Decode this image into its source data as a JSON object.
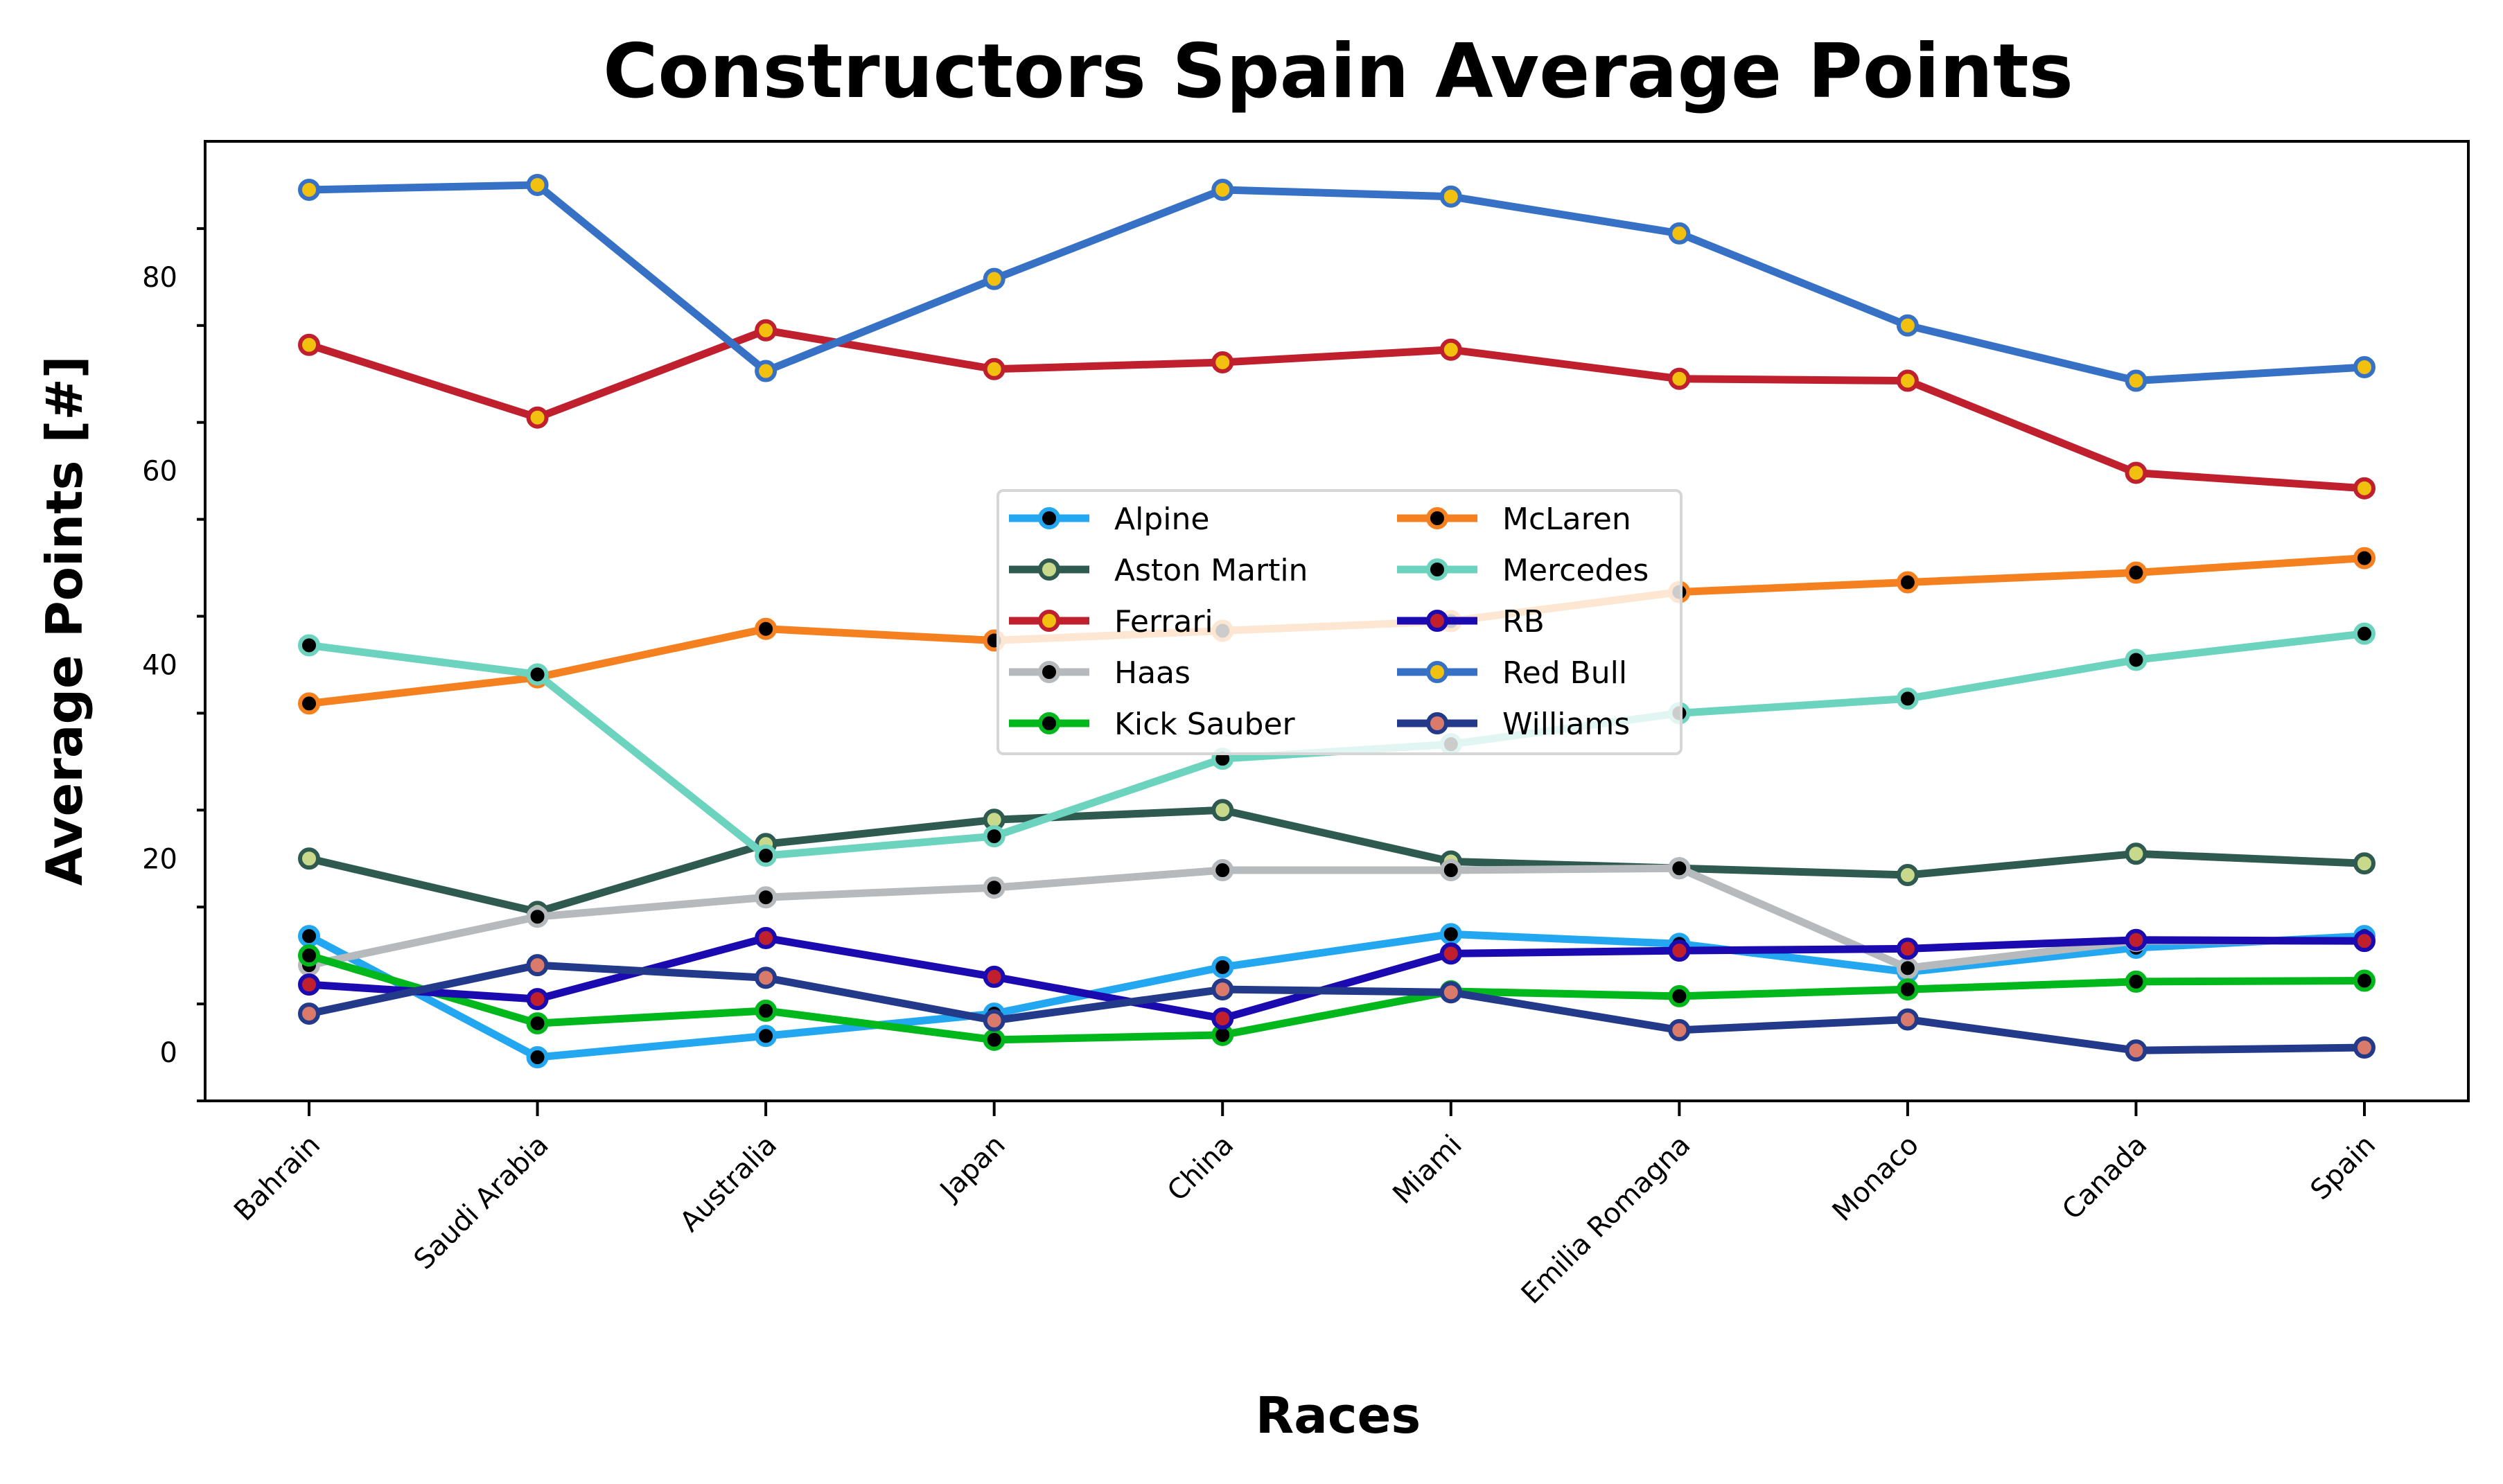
{
  "chart_data": {
    "type": "line",
    "title": "Constructors Spain Average Points",
    "xlabel": "Races",
    "ylabel": "Average Points [#]",
    "categories": [
      "Bahrain",
      "Saudi Arabia",
      "Australia",
      "Japan",
      "China",
      "Miami",
      "Emilia Romagna",
      "Monaco",
      "Canada",
      "Spain"
    ],
    "ylim": [
      -5,
      94
    ],
    "yticks": [
      0,
      20,
      40,
      60,
      80
    ],
    "grid": false,
    "legend_position": "center",
    "series": [
      {
        "name": "Alpine",
        "color": "#22a7f0",
        "marker": "#000000",
        "edge": "#22a7f0",
        "values": [
          12,
          -0.5,
          1.7,
          4,
          8.8,
          12.2,
          11.2,
          8.3,
          10.8,
          12
        ]
      },
      {
        "name": "Aston Martin",
        "color": "#2f5a50",
        "marker": "#c8d98c",
        "edge": "#2f5a50",
        "values": [
          20,
          14.5,
          21.5,
          24,
          25,
          19.7,
          19,
          18.3,
          20.5,
          19.5
        ]
      },
      {
        "name": "Ferrari",
        "color": "#c0202e",
        "marker": "#f2c10f",
        "edge": "#c0202e",
        "values": [
          73,
          65.5,
          74.5,
          70.5,
          71.2,
          72.5,
          69.5,
          69.3,
          59.8,
          58.2
        ]
      },
      {
        "name": "Haas",
        "color": "#b6babd",
        "marker": "#000000",
        "edge": "#b6babd",
        "values": [
          9,
          14,
          16,
          17,
          18.8,
          18.8,
          19,
          8.7,
          11.5,
          11.5
        ]
      },
      {
        "name": "Kick Sauber",
        "color": "#00b81c",
        "marker": "#000000",
        "edge": "#00b81c",
        "values": [
          10,
          3,
          4.3,
          1.3,
          1.8,
          6.3,
          5.8,
          6.5,
          7.3,
          7.4
        ]
      },
      {
        "name": "McLaren",
        "color": "#f58020",
        "marker": "#000000",
        "edge": "#f58020",
        "values": [
          36,
          38.7,
          43.7,
          42.5,
          43.5,
          44.5,
          47.5,
          48.5,
          49.5,
          51
        ]
      },
      {
        "name": "Mercedes",
        "color": "#6cd3bf",
        "marker": "#000000",
        "edge": "#6cd3bf",
        "values": [
          42,
          39,
          20.3,
          22.3,
          30.3,
          31.8,
          35,
          36.5,
          40.5,
          43.2
        ]
      },
      {
        "name": "RB",
        "color": "#1a0ab0",
        "marker": "#c0202e",
        "edge": "#1a0ab0",
        "values": [
          7,
          5.5,
          11.8,
          7.8,
          3.5,
          10.2,
          10.5,
          10.7,
          11.6,
          11.5
        ]
      },
      {
        "name": "Red Bull",
        "color": "#3671c6",
        "marker": "#f2c10f",
        "edge": "#3671c6",
        "values": [
          89,
          89.5,
          70.3,
          79.8,
          89,
          88.3,
          84.5,
          75,
          69.3,
          70.7
        ]
      },
      {
        "name": "Williams",
        "color": "#233a8a",
        "marker": "#d97a6a",
        "edge": "#233a8a",
        "values": [
          4,
          9,
          7.7,
          3.3,
          6.5,
          6.2,
          2.3,
          3.4,
          0.2,
          0.5
        ]
      }
    ]
  }
}
